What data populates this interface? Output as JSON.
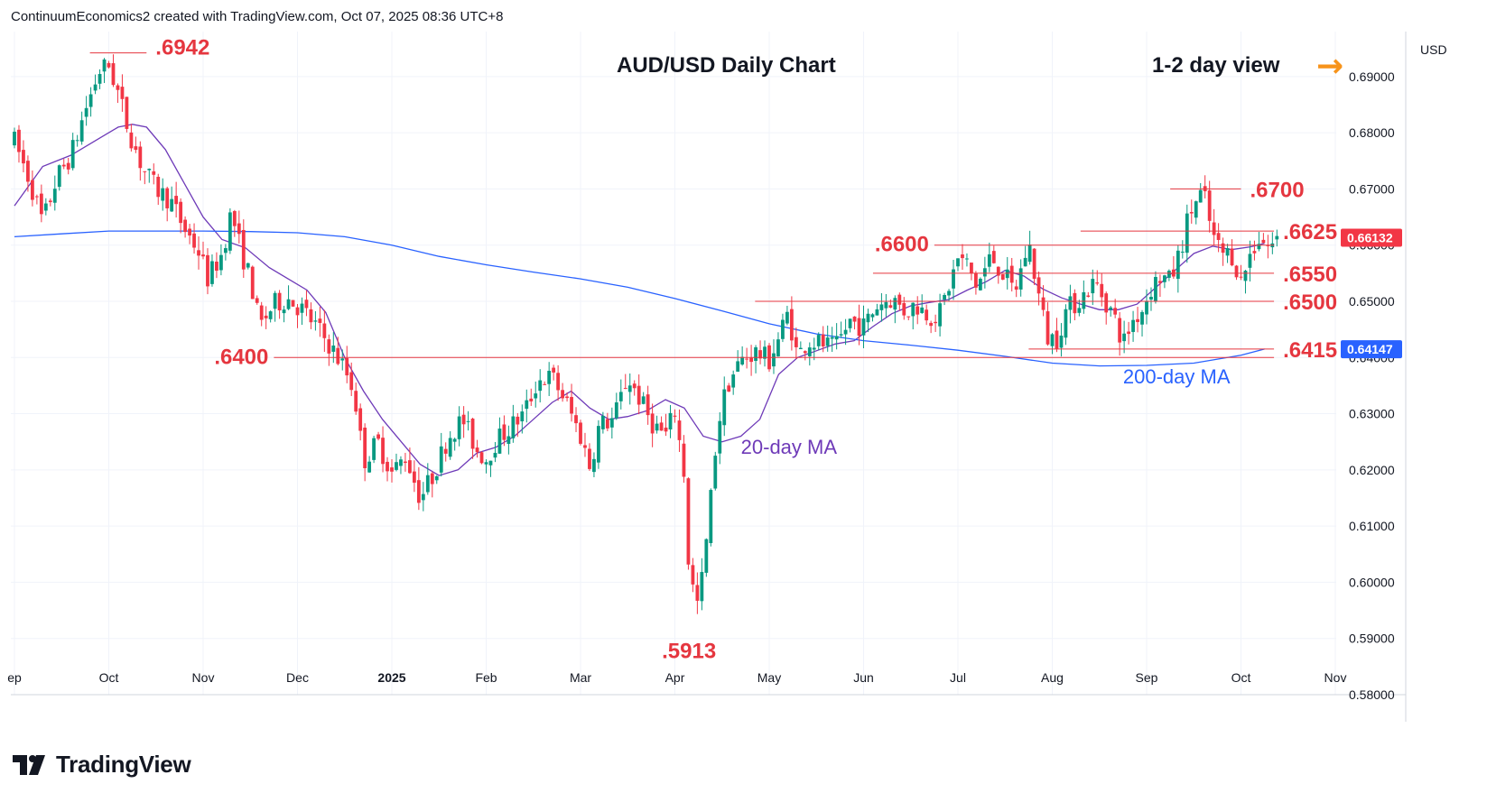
{
  "header": {
    "text": "ContinuumEconomics2 created with TradingView.com, Oct 07, 2025 08:36 UTC+8"
  },
  "footer": {
    "brand": "TradingView"
  },
  "chart_data": {
    "type": "candlestick",
    "title": "AUD/USD Daily Chart",
    "view_label": "1-2 day view",
    "view_arrow": "→",
    "currency": "USD",
    "ylim": [
      0.58,
      0.698
    ],
    "y_ticks": [
      "0.69000",
      "0.68000",
      "0.67000",
      "0.66000",
      "0.65000",
      "0.64000",
      "0.63000",
      "0.62000",
      "0.61000",
      "0.60000",
      "0.59000",
      "0.58000"
    ],
    "y_tick_values": [
      0.69,
      0.68,
      0.67,
      0.66,
      0.65,
      0.64,
      0.63,
      0.62,
      0.61,
      0.6,
      0.59,
      0.58
    ],
    "x_ticks": [
      {
        "label": "ep",
        "pos": 0.0
      },
      {
        "label": "Oct",
        "pos": 1.0
      },
      {
        "label": "Nov",
        "pos": 2.0
      },
      {
        "label": "Dec",
        "pos": 3.0
      },
      {
        "label": "2025",
        "pos": 4.0
      },
      {
        "label": "Feb",
        "pos": 5.0
      },
      {
        "label": "Mar",
        "pos": 6.0
      },
      {
        "label": "Apr",
        "pos": 7.0
      },
      {
        "label": "May",
        "pos": 8.0
      },
      {
        "label": "Jun",
        "pos": 9.0
      },
      {
        "label": "Jul",
        "pos": 10.0
      },
      {
        "label": "Aug",
        "pos": 11.0
      },
      {
        "label": "Sep",
        "pos": 12.0
      },
      {
        "label": "Oct",
        "pos": 13.0
      },
      {
        "label": "Nov",
        "pos": 14.0
      }
    ],
    "price_badges": [
      {
        "label": "0.66132",
        "value": 0.66132,
        "color": "#f23645"
      },
      {
        "label": "0.64147",
        "value": 0.64147,
        "color": "#2962ff"
      }
    ],
    "levels": [
      {
        "label": ".6942",
        "value": 0.6942,
        "from": 0.8,
        "to": 1.4,
        "label_pos": "right"
      },
      {
        "label": ".6700",
        "value": 0.67,
        "from": 12.25,
        "to": 13.0,
        "label_pos": "right"
      },
      {
        "label": ".6625",
        "value": 0.6625,
        "from": 11.3,
        "to": 13.35,
        "label_pos": "right"
      },
      {
        "label": ".6600",
        "value": 0.66,
        "from": 9.75,
        "to": 13.35,
        "label_pos": "left"
      },
      {
        "label": ".6550",
        "value": 0.655,
        "from": 9.1,
        "to": 13.35,
        "label_pos": "right"
      },
      {
        "label": ".6500",
        "value": 0.65,
        "from": 7.85,
        "to": 13.35,
        "label_pos": "right"
      },
      {
        "label": ".6415",
        "value": 0.6415,
        "from": 10.75,
        "to": 13.35,
        "label_pos": "right"
      },
      {
        "label": ".6400",
        "value": 0.64,
        "from": 2.75,
        "to": 13.35,
        "label_pos": "left"
      }
    ],
    "annotations": [
      {
        "label": ".5913",
        "value": 0.5913,
        "pos": 7.15
      },
      {
        "label": "20-day MA",
        "color": "#6e3ab8",
        "pos": 7.7,
        "value": 0.624
      },
      {
        "label": "200-day MA",
        "color": "#2962ff",
        "pos": 11.75,
        "value": 0.6365
      }
    ],
    "series": [
      {
        "name": "20-day MA",
        "color": "#6e3ab8",
        "points": [
          [
            0,
            0.667
          ],
          [
            0.3,
            0.674
          ],
          [
            0.6,
            0.676
          ],
          [
            0.9,
            0.679
          ],
          [
            1.1,
            0.681
          ],
          [
            1.25,
            0.6815
          ],
          [
            1.4,
            0.681
          ],
          [
            1.6,
            0.677
          ],
          [
            1.8,
            0.671
          ],
          [
            2.0,
            0.665
          ],
          [
            2.2,
            0.661
          ],
          [
            2.45,
            0.6595
          ],
          [
            2.7,
            0.656
          ],
          [
            2.9,
            0.654
          ],
          [
            3.1,
            0.652
          ],
          [
            3.3,
            0.648
          ],
          [
            3.5,
            0.64
          ],
          [
            3.7,
            0.634
          ],
          [
            3.9,
            0.629
          ],
          [
            4.1,
            0.625
          ],
          [
            4.3,
            0.621
          ],
          [
            4.5,
            0.619
          ],
          [
            4.7,
            0.62
          ],
          [
            4.9,
            0.623
          ],
          [
            5.1,
            0.624
          ],
          [
            5.3,
            0.626
          ],
          [
            5.5,
            0.629
          ],
          [
            5.7,
            0.632
          ],
          [
            5.9,
            0.634
          ],
          [
            6.1,
            0.631
          ],
          [
            6.3,
            0.629
          ],
          [
            6.5,
            0.6295
          ],
          [
            6.7,
            0.6305
          ],
          [
            6.9,
            0.6325
          ],
          [
            7.1,
            0.631
          ],
          [
            7.3,
            0.626
          ],
          [
            7.5,
            0.625
          ],
          [
            7.7,
            0.626
          ],
          [
            7.9,
            0.629
          ],
          [
            8.1,
            0.637
          ],
          [
            8.3,
            0.64
          ],
          [
            8.5,
            0.6412
          ],
          [
            8.7,
            0.6424
          ],
          [
            8.9,
            0.643
          ],
          [
            9.1,
            0.6455
          ],
          [
            9.3,
            0.6478
          ],
          [
            9.5,
            0.6492
          ],
          [
            9.7,
            0.6498
          ],
          [
            9.9,
            0.6503
          ],
          [
            10.1,
            0.652
          ],
          [
            10.3,
            0.6535
          ],
          [
            10.5,
            0.6555
          ],
          [
            10.7,
            0.6545
          ],
          [
            10.9,
            0.6522
          ],
          [
            11.1,
            0.6506
          ],
          [
            11.3,
            0.6495
          ],
          [
            11.5,
            0.6485
          ],
          [
            11.7,
            0.6485
          ],
          [
            11.9,
            0.6495
          ],
          [
            12.1,
            0.6525
          ],
          [
            12.3,
            0.6555
          ],
          [
            12.5,
            0.6585
          ],
          [
            12.7,
            0.6598
          ],
          [
            12.9,
            0.6592
          ],
          [
            13.1,
            0.6597
          ],
          [
            13.25,
            0.6603
          ]
        ]
      },
      {
        "name": "200-day MA",
        "color": "#2962ff",
        "points": [
          [
            0,
            0.6615
          ],
          [
            0.5,
            0.662
          ],
          [
            1.0,
            0.6625
          ],
          [
            1.5,
            0.6625
          ],
          [
            2.0,
            0.6625
          ],
          [
            2.5,
            0.6624
          ],
          [
            3.0,
            0.6622
          ],
          [
            3.5,
            0.6615
          ],
          [
            4.0,
            0.66
          ],
          [
            4.5,
            0.658
          ],
          [
            5.0,
            0.6565
          ],
          [
            5.5,
            0.6552
          ],
          [
            6.0,
            0.654
          ],
          [
            6.5,
            0.6525
          ],
          [
            7.0,
            0.6505
          ],
          [
            7.5,
            0.6483
          ],
          [
            8.0,
            0.646
          ],
          [
            8.5,
            0.6442
          ],
          [
            9.0,
            0.643
          ],
          [
            9.5,
            0.6422
          ],
          [
            10.0,
            0.6413
          ],
          [
            10.5,
            0.6402
          ],
          [
            11.0,
            0.639
          ],
          [
            11.5,
            0.6385
          ],
          [
            12.0,
            0.6386
          ],
          [
            12.5,
            0.639
          ],
          [
            13.0,
            0.6404
          ],
          [
            13.25,
            0.6415
          ]
        ]
      },
      {
        "name": "price-path",
        "color": "#089981",
        "points": [
          [
            0,
            0.6785
          ],
          [
            0.15,
            0.672
          ],
          [
            0.3,
            0.664
          ],
          [
            0.45,
            0.672
          ],
          [
            0.6,
            0.676
          ],
          [
            0.75,
            0.684
          ],
          [
            0.9,
            0.691
          ],
          [
            1.0,
            0.692
          ],
          [
            1.1,
            0.687
          ],
          [
            1.2,
            0.681
          ],
          [
            1.35,
            0.674
          ],
          [
            1.5,
            0.67
          ],
          [
            1.65,
            0.668
          ],
          [
            1.8,
            0.663
          ],
          [
            1.95,
            0.659
          ],
          [
            2.05,
            0.654
          ],
          [
            2.2,
            0.6585
          ],
          [
            2.3,
            0.666
          ],
          [
            2.4,
            0.659
          ],
          [
            2.5,
            0.654
          ],
          [
            2.6,
            0.6455
          ],
          [
            2.75,
            0.6495
          ],
          [
            2.9,
            0.6505
          ],
          [
            3.05,
            0.6485
          ],
          [
            3.2,
            0.6455
          ],
          [
            3.35,
            0.642
          ],
          [
            3.5,
            0.638
          ],
          [
            3.6,
            0.634
          ],
          [
            3.7,
            0.6215
          ],
          [
            3.85,
            0.625
          ],
          [
            4.0,
            0.6195
          ],
          [
            4.15,
            0.6225
          ],
          [
            4.3,
            0.615
          ],
          [
            4.45,
            0.6195
          ],
          [
            4.6,
            0.626
          ],
          [
            4.75,
            0.629
          ],
          [
            4.9,
            0.6235
          ],
          [
            5.0,
            0.622
          ],
          [
            5.1,
            0.625
          ],
          [
            5.25,
            0.6275
          ],
          [
            5.4,
            0.63
          ],
          [
            5.55,
            0.636
          ],
          [
            5.7,
            0.6365
          ],
          [
            5.85,
            0.632
          ],
          [
            6.0,
            0.626
          ],
          [
            6.1,
            0.6205
          ],
          [
            6.2,
            0.628
          ],
          [
            6.35,
            0.629
          ],
          [
            6.5,
            0.6365
          ],
          [
            6.6,
            0.6335
          ],
          [
            6.75,
            0.6285
          ],
          [
            6.9,
            0.626
          ],
          [
            7.0,
            0.6305
          ],
          [
            7.1,
            0.619
          ],
          [
            7.15,
            0.6015
          ],
          [
            7.25,
            0.5955
          ],
          [
            7.35,
            0.6095
          ],
          [
            7.45,
            0.6275
          ],
          [
            7.55,
            0.635
          ],
          [
            7.7,
            0.6395
          ],
          [
            7.85,
            0.641
          ],
          [
            8.0,
            0.6395
          ],
          [
            8.1,
            0.6435
          ],
          [
            8.2,
            0.648
          ],
          [
            8.3,
            0.64
          ],
          [
            8.4,
            0.643
          ],
          [
            8.55,
            0.6425
          ],
          [
            8.7,
            0.6415
          ],
          [
            8.85,
            0.6465
          ],
          [
            9.0,
            0.6455
          ],
          [
            9.15,
            0.6495
          ],
          [
            9.3,
            0.6505
          ],
          [
            9.45,
            0.648
          ],
          [
            9.55,
            0.6495
          ],
          [
            9.7,
            0.6475
          ],
          [
            9.8,
            0.6475
          ],
          [
            9.9,
            0.6525
          ],
          [
            10.0,
            0.6575
          ],
          [
            10.1,
            0.6565
          ],
          [
            10.2,
            0.6525
          ],
          [
            10.35,
            0.658
          ],
          [
            10.5,
            0.6545
          ],
          [
            10.6,
            0.6515
          ],
          [
            10.75,
            0.6605
          ],
          [
            10.85,
            0.6515
          ],
          [
            10.95,
            0.6435
          ],
          [
            11.05,
            0.6435
          ],
          [
            11.15,
            0.6485
          ],
          [
            11.3,
            0.6505
          ],
          [
            11.45,
            0.6535
          ],
          [
            11.55,
            0.6505
          ],
          [
            11.65,
            0.6475
          ],
          [
            11.75,
            0.6425
          ],
          [
            11.85,
            0.6465
          ],
          [
            11.95,
            0.6485
          ],
          [
            12.05,
            0.6525
          ],
          [
            12.15,
            0.6545
          ],
          [
            12.25,
            0.6535
          ],
          [
            12.35,
            0.6585
          ],
          [
            12.45,
            0.6655
          ],
          [
            12.55,
            0.6685
          ],
          [
            12.6,
            0.6695
          ],
          [
            12.7,
            0.6615
          ],
          [
            12.8,
            0.6585
          ],
          [
            12.9,
            0.6585
          ],
          [
            13.0,
            0.6535
          ],
          [
            13.1,
            0.6585
          ],
          [
            13.2,
            0.6615
          ],
          [
            13.3,
            0.6595
          ],
          [
            13.4,
            0.6613
          ]
        ]
      }
    ]
  }
}
